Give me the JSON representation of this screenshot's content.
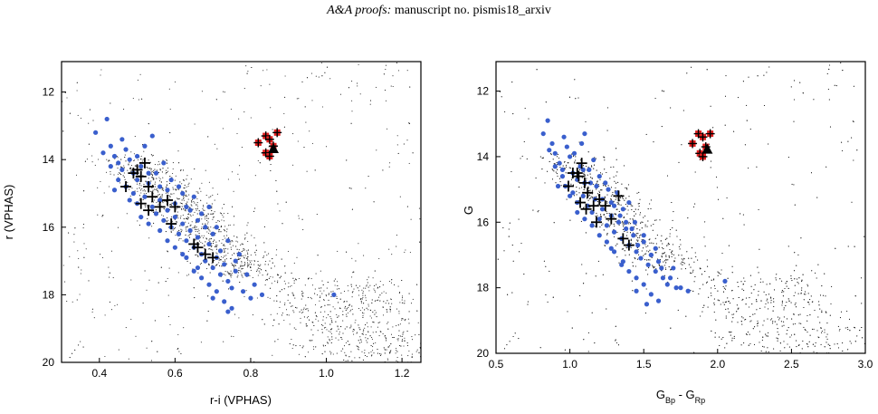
{
  "header": {
    "journal": "A&A proofs:",
    "manuscript": "manuscript no. pismis18_arxiv"
  },
  "colors": {
    "field": "#222222",
    "members": "#3a5fcd",
    "red_clump": "#e02020",
    "cross": "#000000"
  },
  "chart_data": [
    {
      "type": "scatter",
      "title": "",
      "xlabel": "r-i (VPHAS)",
      "ylabel": "r (VPHAS)",
      "xlim": [
        0.3,
        1.25
      ],
      "ylim": [
        20,
        11.1
      ],
      "y_inverted": true,
      "xticks": [
        "0.4",
        "0.6",
        "0.8",
        "1.0",
        "1.2"
      ],
      "yticks": [
        "12",
        "14",
        "16",
        "18",
        "20"
      ],
      "series": [
        {
          "role": "members",
          "marker": "blue-circle",
          "points": [
            [
              0.39,
              13.2
            ],
            [
              0.42,
              12.8
            ],
            [
              0.43,
              13.6
            ],
            [
              0.44,
              13.9
            ],
            [
              0.45,
              14.1
            ],
            [
              0.46,
              14.3
            ],
            [
              0.43,
              14.2
            ],
            [
              0.47,
              13.7
            ],
            [
              0.48,
              14.0
            ],
            [
              0.49,
              14.4
            ],
            [
              0.5,
              14.6
            ],
            [
              0.51,
              14.2
            ],
            [
              0.47,
              14.8
            ],
            [
              0.49,
              15.0
            ],
            [
              0.5,
              15.3
            ],
            [
              0.52,
              15.1
            ],
            [
              0.53,
              14.7
            ],
            [
              0.54,
              15.4
            ],
            [
              0.55,
              15.6
            ],
            [
              0.56,
              15.2
            ],
            [
              0.57,
              15.8
            ],
            [
              0.58,
              15.5
            ],
            [
              0.59,
              16.0
            ],
            [
              0.6,
              15.7
            ],
            [
              0.61,
              16.2
            ],
            [
              0.62,
              15.9
            ],
            [
              0.63,
              16.4
            ],
            [
              0.64,
              16.1
            ],
            [
              0.65,
              16.6
            ],
            [
              0.66,
              16.3
            ],
            [
              0.67,
              16.8
            ],
            [
              0.68,
              17.0
            ],
            [
              0.69,
              16.5
            ],
            [
              0.7,
              17.2
            ],
            [
              0.71,
              16.9
            ],
            [
              0.72,
              17.4
            ],
            [
              0.73,
              17.1
            ],
            [
              0.74,
              17.6
            ],
            [
              0.75,
              17.8
            ],
            [
              0.76,
              17.3
            ],
            [
              0.78,
              17.9
            ],
            [
              0.8,
              18.1
            ],
            [
              0.52,
              13.6
            ],
            [
              0.55,
              14.4
            ],
            [
              0.58,
              14.9
            ],
            [
              0.6,
              15.3
            ],
            [
              0.62,
              15.0
            ],
            [
              0.64,
              15.5
            ],
            [
              0.66,
              15.8
            ],
            [
              0.68,
              16.0
            ],
            [
              0.7,
              16.2
            ],
            [
              0.72,
              16.7
            ],
            [
              0.74,
              16.4
            ],
            [
              0.76,
              17.0
            ],
            [
              0.45,
              14.6
            ],
            [
              0.48,
              15.2
            ],
            [
              0.51,
              15.7
            ],
            [
              0.53,
              15.9
            ],
            [
              0.56,
              16.1
            ],
            [
              0.58,
              16.4
            ],
            [
              0.6,
              16.6
            ],
            [
              0.63,
              16.9
            ],
            [
              0.65,
              17.3
            ],
            [
              0.67,
              17.5
            ],
            [
              0.69,
              17.7
            ],
            [
              0.71,
              17.9
            ],
            [
              0.73,
              18.2
            ],
            [
              0.75,
              18.4
            ],
            [
              0.54,
              13.3
            ],
            [
              0.57,
              14.1
            ],
            [
              0.59,
              14.6
            ],
            [
              0.61,
              14.8
            ],
            [
              0.63,
              15.4
            ],
            [
              0.65,
              15.1
            ],
            [
              0.67,
              15.6
            ],
            [
              0.69,
              15.4
            ],
            [
              0.71,
              16.0
            ],
            [
              0.77,
              16.8
            ],
            [
              0.79,
              17.4
            ],
            [
              0.81,
              17.7
            ],
            [
              0.83,
              18.0
            ],
            [
              1.02,
              18.0
            ],
            [
              0.46,
              13.4
            ],
            [
              0.41,
              13.8
            ],
            [
              0.44,
              14.9
            ],
            [
              0.5,
              13.9
            ],
            [
              0.53,
              14.4
            ],
            [
              0.56,
              14.8
            ],
            [
              0.62,
              16.8
            ],
            [
              0.66,
              17.2
            ],
            [
              0.74,
              18.5
            ],
            [
              0.7,
              18.1
            ]
          ]
        },
        {
          "role": "crosses",
          "marker": "black-cross",
          "points": [
            [
              0.5,
              14.3
            ],
            [
              0.52,
              14.1
            ],
            [
              0.47,
              14.8
            ],
            [
              0.51,
              14.5
            ],
            [
              0.53,
              14.8
            ],
            [
              0.54,
              15.1
            ],
            [
              0.51,
              15.3
            ],
            [
              0.53,
              15.5
            ],
            [
              0.56,
              15.4
            ],
            [
              0.58,
              15.2
            ],
            [
              0.6,
              15.4
            ],
            [
              0.59,
              15.9
            ],
            [
              0.65,
              16.5
            ],
            [
              0.66,
              16.6
            ],
            [
              0.68,
              16.8
            ],
            [
              0.7,
              16.9
            ],
            [
              0.49,
              14.4
            ]
          ]
        },
        {
          "role": "red-clump",
          "marker": "red-square-cross",
          "points": [
            [
              0.82,
              13.5
            ],
            [
              0.84,
              13.3
            ],
            [
              0.85,
              13.4
            ],
            [
              0.87,
              13.2
            ],
            [
              0.84,
              13.8
            ],
            [
              0.85,
              13.9
            ],
            [
              0.86,
              13.6
            ]
          ]
        },
        {
          "role": "triangle",
          "marker": "black-triangle",
          "points": [
            [
              0.86,
              13.7
            ]
          ]
        }
      ]
    },
    {
      "type": "scatter",
      "title": "",
      "xlabel": "G_Bp - G_Rp",
      "ylabel": "G",
      "xlim": [
        0.5,
        3.0
      ],
      "ylim": [
        20,
        11.1
      ],
      "y_inverted": true,
      "xticks": [
        "0.5",
        "1.0",
        "1.5",
        "2.0",
        "2.5",
        "3.0"
      ],
      "yticks": [
        "12",
        "14",
        "16",
        "18",
        "20"
      ],
      "series": [
        {
          "role": "members",
          "marker": "blue-circle",
          "points": [
            [
              0.82,
              13.3
            ],
            [
              0.85,
              12.9
            ],
            [
              0.88,
              13.6
            ],
            [
              0.9,
              13.9
            ],
            [
              0.93,
              14.2
            ],
            [
              0.95,
              14.4
            ],
            [
              0.9,
              14.3
            ],
            [
              0.98,
              13.7
            ],
            [
              1.0,
              14.0
            ],
            [
              1.02,
              14.5
            ],
            [
              1.05,
              14.7
            ],
            [
              1.07,
              14.3
            ],
            [
              0.97,
              14.9
            ],
            [
              1.02,
              15.1
            ],
            [
              1.05,
              15.4
            ],
            [
              1.09,
              15.2
            ],
            [
              1.1,
              14.8
            ],
            [
              1.12,
              15.5
            ],
            [
              1.15,
              15.7
            ],
            [
              1.17,
              15.3
            ],
            [
              1.2,
              15.9
            ],
            [
              1.22,
              15.6
            ],
            [
              1.25,
              16.1
            ],
            [
              1.28,
              15.8
            ],
            [
              1.3,
              16.3
            ],
            [
              1.33,
              16.0
            ],
            [
              1.35,
              16.5
            ],
            [
              1.38,
              16.2
            ],
            [
              1.4,
              16.7
            ],
            [
              1.43,
              16.4
            ],
            [
              1.45,
              16.9
            ],
            [
              1.48,
              17.1
            ],
            [
              1.5,
              16.6
            ],
            [
              1.53,
              17.3
            ],
            [
              1.55,
              17.0
            ],
            [
              1.58,
              17.5
            ],
            [
              1.6,
              17.2
            ],
            [
              1.63,
              17.7
            ],
            [
              1.66,
              17.9
            ],
            [
              1.7,
              17.4
            ],
            [
              1.75,
              18.0
            ],
            [
              1.8,
              18.1
            ],
            [
              1.08,
              13.6
            ],
            [
              1.13,
              14.4
            ],
            [
              1.18,
              14.9
            ],
            [
              1.22,
              15.3
            ],
            [
              1.26,
              15.0
            ],
            [
              1.3,
              15.5
            ],
            [
              1.34,
              15.8
            ],
            [
              1.38,
              16.0
            ],
            [
              1.42,
              16.2
            ],
            [
              1.46,
              16.7
            ],
            [
              1.5,
              16.4
            ],
            [
              1.55,
              17.0
            ],
            [
              0.95,
              14.6
            ],
            [
              1.0,
              15.2
            ],
            [
              1.05,
              15.7
            ],
            [
              1.1,
              15.9
            ],
            [
              1.15,
              16.1
            ],
            [
              1.2,
              16.4
            ],
            [
              1.25,
              16.6
            ],
            [
              1.3,
              16.9
            ],
            [
              1.35,
              17.3
            ],
            [
              1.4,
              17.5
            ],
            [
              1.45,
              17.7
            ],
            [
              1.5,
              17.9
            ],
            [
              1.55,
              18.2
            ],
            [
              1.6,
              18.4
            ],
            [
              1.1,
              13.3
            ],
            [
              1.16,
              14.1
            ],
            [
              1.2,
              14.6
            ],
            [
              1.24,
              14.8
            ],
            [
              1.28,
              15.4
            ],
            [
              1.32,
              15.1
            ],
            [
              1.36,
              15.6
            ],
            [
              1.4,
              15.4
            ],
            [
              1.44,
              16.0
            ],
            [
              1.58,
              16.8
            ],
            [
              1.62,
              17.4
            ],
            [
              1.68,
              17.7
            ],
            [
              1.72,
              18.0
            ],
            [
              2.05,
              17.8
            ],
            [
              0.96,
              13.4
            ],
            [
              0.86,
              13.8
            ],
            [
              0.92,
              14.9
            ],
            [
              1.03,
              13.9
            ],
            [
              1.09,
              14.4
            ],
            [
              1.14,
              14.8
            ],
            [
              1.28,
              16.8
            ],
            [
              1.36,
              17.2
            ],
            [
              1.52,
              18.5
            ],
            [
              1.45,
              18.1
            ]
          ]
        },
        {
          "role": "crosses",
          "marker": "black-cross",
          "points": [
            [
              1.05,
              14.5
            ],
            [
              1.08,
              14.2
            ],
            [
              0.99,
              14.9
            ],
            [
              1.06,
              14.6
            ],
            [
              1.1,
              14.8
            ],
            [
              1.12,
              15.1
            ],
            [
              1.07,
              15.4
            ],
            [
              1.11,
              15.6
            ],
            [
              1.16,
              15.5
            ],
            [
              1.2,
              15.3
            ],
            [
              1.24,
              15.5
            ],
            [
              1.28,
              15.9
            ],
            [
              1.33,
              15.2
            ],
            [
              1.36,
              16.5
            ],
            [
              1.4,
              16.7
            ],
            [
              1.18,
              16.0
            ],
            [
              1.02,
              14.5
            ]
          ]
        },
        {
          "role": "red-clump",
          "marker": "red-square-cross",
          "points": [
            [
              1.83,
              13.6
            ],
            [
              1.87,
              13.3
            ],
            [
              1.9,
              13.4
            ],
            [
              1.95,
              13.3
            ],
            [
              1.88,
              13.9
            ],
            [
              1.9,
              14.0
            ],
            [
              1.92,
              13.7
            ]
          ]
        },
        {
          "role": "triangle",
          "marker": "black-triangle",
          "points": [
            [
              1.93,
              13.8
            ]
          ]
        }
      ]
    }
  ]
}
